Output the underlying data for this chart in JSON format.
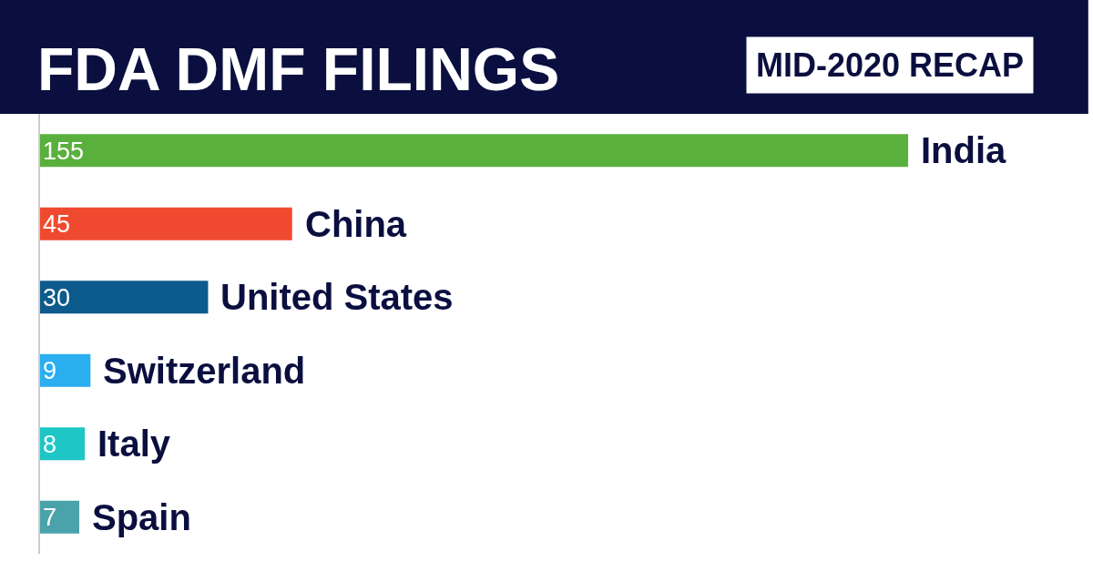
{
  "chart_data": {
    "type": "bar",
    "orientation": "horizontal",
    "title": "FDA DMF FILINGS",
    "subtitle": "MID-2020 RECAP",
    "categories": [
      "India",
      "China",
      "United States",
      "Switzerland",
      "Italy",
      "Spain"
    ],
    "values": [
      155,
      45,
      30,
      9,
      8,
      7
    ],
    "colors": [
      "#5ab03c",
      "#ef4a2f",
      "#0d5a8c",
      "#2aaef0",
      "#1ec6c6",
      "#4aa3ab"
    ],
    "data_labels": true
  }
}
